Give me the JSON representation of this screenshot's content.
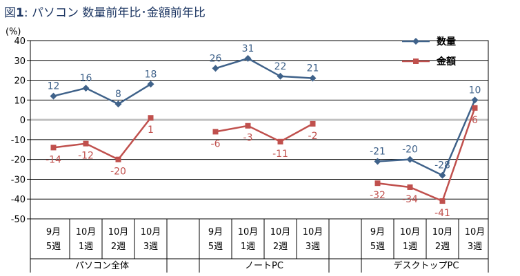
{
  "chart_data": {
    "type": "line",
    "title_prefix": "図",
    "title_number": "1",
    "title_text": ": パソコン 数量前年比･金額前年比",
    "ylabel": "(%)",
    "ylim": [
      -50,
      40
    ],
    "yticks": [
      "40",
      "30",
      "20",
      "10",
      "0",
      "-10",
      "-20",
      "-30",
      "-40",
      "-50"
    ],
    "grid": true,
    "legend_position": "top-right",
    "groups": [
      {
        "name": "パソコン全体",
        "categories": [
          [
            "9月",
            "5週"
          ],
          [
            "10月",
            "1週"
          ],
          [
            "10月",
            "2週"
          ],
          [
            "10月",
            "3週"
          ]
        ],
        "series": [
          {
            "name": "数量",
            "values": [
              12,
              16,
              8,
              18
            ],
            "labels": [
              "12",
              "16",
              "8",
              "18"
            ]
          },
          {
            "name": "金額",
            "values": [
              -14,
              -12,
              -20,
              1
            ],
            "labels": [
              "-14",
              "-12",
              "-20",
              "1"
            ]
          }
        ]
      },
      {
        "name": "ノートPC",
        "categories": [
          [
            "9月",
            "5週"
          ],
          [
            "10月",
            "1週"
          ],
          [
            "10月",
            "2週"
          ],
          [
            "10月",
            "3週"
          ]
        ],
        "series": [
          {
            "name": "数量",
            "values": [
              26,
              31,
              22,
              21
            ],
            "labels": [
              "26",
              "31",
              "22",
              "21"
            ]
          },
          {
            "name": "金額",
            "values": [
              -6,
              -3,
              -11,
              -2
            ],
            "labels": [
              "-6",
              "-3",
              "-11",
              "-2"
            ]
          }
        ]
      },
      {
        "name": "デスクトップPC",
        "categories": [
          [
            "9月",
            "5週"
          ],
          [
            "10月",
            "1週"
          ],
          [
            "10月",
            "2週"
          ],
          [
            "10月",
            "3週"
          ]
        ],
        "series": [
          {
            "name": "数量",
            "values": [
              -21,
              -20,
              -28,
              10
            ],
            "labels": [
              "-21",
              "-20",
              "-28",
              "10"
            ]
          },
          {
            "name": "金額",
            "values": [
              -32,
              -34,
              -41,
              6
            ],
            "labels": [
              "-32",
              "-34",
              "-41",
              "6"
            ]
          }
        ]
      }
    ],
    "legend": [
      {
        "name": "数量",
        "color": "#3f628a",
        "marker": "diamond"
      },
      {
        "name": "金額",
        "color": "#c0504d",
        "marker": "square"
      }
    ],
    "colors": {
      "quantity": "#3f628a",
      "amount": "#c0504d",
      "zero_line": "#c0c0c0",
      "grid": "#000000"
    }
  }
}
